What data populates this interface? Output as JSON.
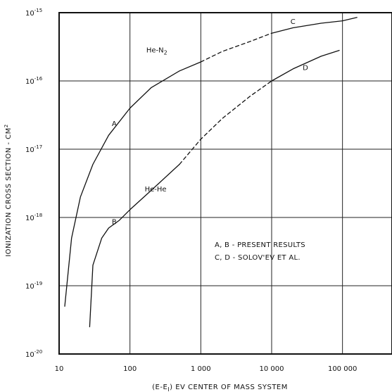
{
  "chart_data": {
    "type": "line",
    "xscale": "log",
    "yscale": "log",
    "xlim": [
      10,
      500000
    ],
    "ylim": [
      1e-20,
      1e-15
    ],
    "grid": true,
    "xlabel": {
      "prefix": "(E-E",
      "sub": "I",
      "suffix": ") EV CENTER OF MASS SYSTEM"
    },
    "ylabel": {
      "text": "IONIZATION CROSS SECTION - CM",
      "sup": "2"
    },
    "xticks": [
      {
        "value": 10,
        "label": "10"
      },
      {
        "value": 100,
        "label": "100"
      },
      {
        "value": 1000,
        "label": "1 000"
      },
      {
        "value": 10000,
        "label": "10 000"
      },
      {
        "value": 100000,
        "label": "100 000"
      }
    ],
    "yticks": [
      {
        "value": 1e-20,
        "base": "10",
        "exp": "-20"
      },
      {
        "value": 1e-19,
        "base": "10",
        "exp": "-19"
      },
      {
        "value": 1e-18,
        "base": "10",
        "exp": "-18"
      },
      {
        "value": 1e-17,
        "base": "10",
        "exp": "-17"
      },
      {
        "value": 1e-16,
        "base": "10",
        "exp": "-16"
      },
      {
        "value": 1e-15,
        "base": "10",
        "exp": "-15"
      }
    ],
    "series": [
      {
        "name": "A",
        "style": "solid",
        "color": "#111111",
        "x": [
          12,
          15,
          20,
          30,
          50,
          100,
          200,
          500,
          1000
        ],
        "y": [
          5e-20,
          5e-19,
          2e-18,
          6e-18,
          1.6e-17,
          4e-17,
          8e-17,
          1.4e-16,
          1.9e-16
        ]
      },
      {
        "name": "C",
        "style": "dashed",
        "color": "#111111",
        "x": [
          1000,
          2000,
          5000,
          10000
        ],
        "y": [
          1.9e-16,
          2.7e-16,
          3.8e-16,
          5e-16
        ]
      },
      {
        "name": "C",
        "style": "solid",
        "color": "#111111",
        "x": [
          10000,
          20000,
          50000,
          100000,
          160000
        ],
        "y": [
          5e-16,
          6e-16,
          7e-16,
          7.6e-16,
          8.5e-16
        ]
      },
      {
        "name": "B",
        "style": "solid",
        "color": "#111111",
        "x": [
          27,
          30,
          40,
          50,
          70,
          100,
          200,
          500
        ],
        "y": [
          2.5e-20,
          2e-19,
          5e-19,
          7e-19,
          9e-19,
          1.3e-18,
          2.5e-18,
          6e-18
        ]
      },
      {
        "name": "D",
        "style": "dashed",
        "color": "#111111",
        "x": [
          500,
          1000,
          2000,
          5000,
          10000
        ],
        "y": [
          6e-18,
          1.4e-17,
          2.8e-17,
          6e-17,
          1e-16
        ]
      },
      {
        "name": "D",
        "style": "solid",
        "color": "#111111",
        "x": [
          10000,
          20000,
          50000,
          90000
        ],
        "y": [
          1e-16,
          1.5e-16,
          2.3e-16,
          2.8e-16
        ]
      }
    ],
    "annotations": [
      {
        "text": "C",
        "x": 20000,
        "y": 6.8e-16
      },
      {
        "text": "D",
        "x": 30000,
        "y": 1.45e-16
      },
      {
        "text": "A",
        "x": 60,
        "y": 2.2e-17
      },
      {
        "text": "B",
        "x": 60,
        "y": 8e-19
      },
      {
        "text": "He-He",
        "x": 230,
        "y": 2.4e-18
      }
    ],
    "he_n2_label": {
      "prefix": "He-N",
      "sub": "2",
      "x": 170,
      "y": 2.6e-16
    },
    "legend_note": {
      "line1": "A, B - PRESENT RESULTS",
      "line2": "C, D - SOLOV'EV ET AL.",
      "placement": "lower-right"
    }
  }
}
